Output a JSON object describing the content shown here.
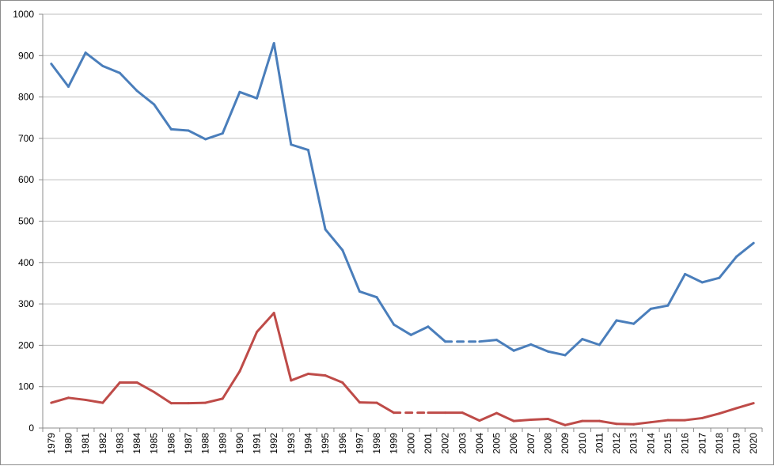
{
  "chart_data": {
    "type": "line",
    "title": "",
    "xlabel": "",
    "ylabel": "",
    "ylim": [
      0,
      1000
    ],
    "yticks": [
      0,
      100,
      200,
      300,
      400,
      500,
      600,
      700,
      800,
      900,
      1000
    ],
    "grid": "horizontal",
    "legend": "none",
    "x": [
      "1979",
      "1980",
      "1981",
      "1982",
      "1983",
      "1984",
      "1985",
      "1986",
      "1987",
      "1988",
      "1989",
      "1990",
      "1991",
      "1992",
      "1993",
      "1994",
      "1995",
      "1996",
      "1997",
      "1998",
      "1999",
      "2000",
      "2001",
      "2002",
      "2003",
      "2004",
      "2005",
      "2006",
      "2007",
      "2008",
      "2009",
      "2010",
      "2011",
      "2012",
      "2013",
      "2014",
      "2015",
      "2016",
      "2017",
      "2018",
      "2019",
      "2020"
    ],
    "series": [
      {
        "color": "#4a7ebb",
        "values": [
          880,
          825,
          907,
          875,
          858,
          815,
          782,
          722,
          719,
          698,
          712,
          812,
          797,
          930,
          685,
          672,
          480,
          430,
          330,
          316,
          250,
          225,
          245,
          209,
          null,
          209,
          213,
          187,
          202,
          185,
          176,
          215,
          201,
          260,
          252,
          288,
          296,
          372,
          352,
          363,
          414,
          447
        ],
        "dashed_gap": [
          "2002",
          "2004"
        ]
      },
      {
        "color": "#be4b48",
        "values": [
          61,
          73,
          68,
          61,
          110,
          110,
          87,
          60,
          60,
          61,
          71,
          137,
          232,
          278,
          115,
          131,
          127,
          110,
          62,
          61,
          37,
          null,
          37,
          37,
          37,
          18,
          36,
          17,
          20,
          22,
          7,
          17,
          17,
          10,
          9,
          14,
          19,
          19,
          24,
          35,
          48,
          60
        ],
        "dashed_gap": [
          "1999",
          "2002"
        ]
      }
    ]
  }
}
